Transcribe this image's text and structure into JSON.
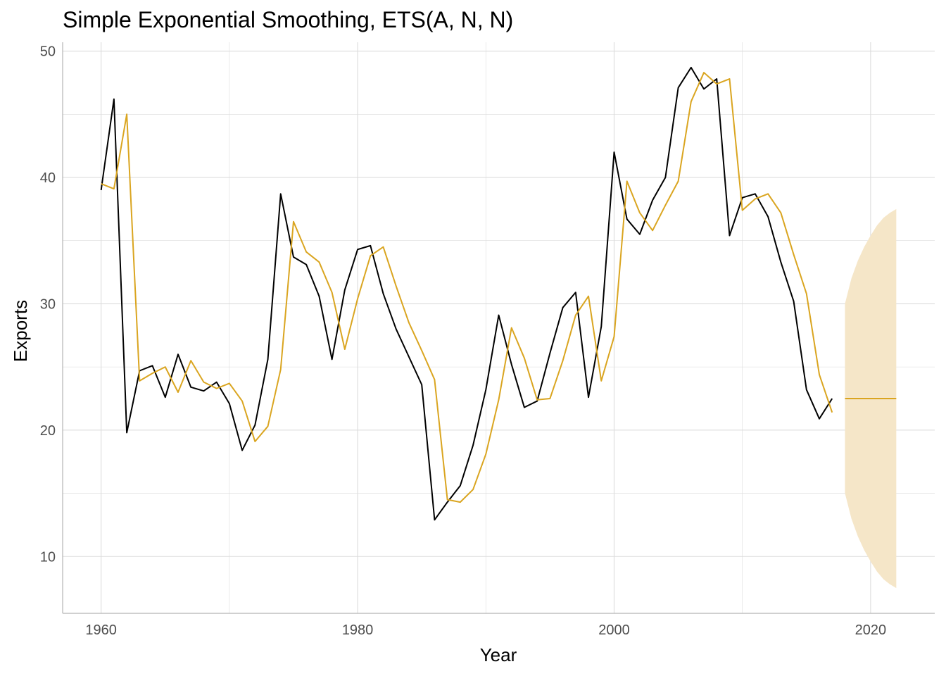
{
  "chart_data": {
    "type": "line",
    "title": "Simple Exponential Smoothing, ETS(A, N, N)",
    "xlabel": "Year",
    "ylabel": "Exports",
    "xlim": [
      1957,
      2025
    ],
    "ylim": [
      5.5,
      50.7
    ],
    "x_ticks": [
      1960,
      1980,
      2000,
      2020
    ],
    "y_ticks": [
      10,
      20,
      30,
      40,
      50
    ],
    "grid": true,
    "legend": "none",
    "colors": {
      "observed": "#000000",
      "fitted": "#DAA520",
      "forecast": "#DAA520",
      "interval": "#F5E6C8",
      "grid": "#dcdcdc",
      "axis": "#b3b3b3"
    },
    "series": [
      {
        "role": "observed",
        "x": [
          1960,
          1961,
          1962,
          1963,
          1964,
          1965,
          1966,
          1967,
          1968,
          1969,
          1970,
          1971,
          1972,
          1973,
          1974,
          1975,
          1976,
          1977,
          1978,
          1979,
          1980,
          1981,
          1982,
          1983,
          1984,
          1985,
          1986,
          1987,
          1988,
          1989,
          1990,
          1991,
          1992,
          1993,
          1994,
          1995,
          1996,
          1997,
          1998,
          1999,
          2000,
          2001,
          2002,
          2003,
          2004,
          2005,
          2006,
          2007,
          2008,
          2009,
          2010,
          2011,
          2012,
          2013,
          2014,
          2015,
          2016,
          2017
        ],
        "values": [
          39.0,
          46.2,
          19.8,
          24.7,
          25.1,
          22.6,
          26.0,
          23.4,
          23.1,
          23.8,
          22.1,
          18.4,
          20.4,
          25.6,
          38.7,
          33.7,
          33.1,
          30.6,
          25.6,
          31.1,
          34.3,
          34.6,
          30.8,
          28.0,
          25.8,
          23.6,
          12.9,
          14.3,
          15.6,
          18.8,
          23.2,
          29.1,
          25.2,
          21.8,
          22.3,
          26.1,
          29.7,
          30.9,
          22.6,
          28.2,
          42.0,
          36.7,
          35.5,
          38.2,
          40.0,
          47.1,
          48.7,
          47.0,
          47.8,
          35.4,
          38.4,
          38.7,
          36.9,
          33.3,
          30.2,
          23.2,
          20.9,
          22.5
        ]
      },
      {
        "role": "fitted",
        "x": [
          1960,
          1961,
          1962,
          1963,
          1964,
          1965,
          1966,
          1967,
          1968,
          1969,
          1970,
          1971,
          1972,
          1973,
          1974,
          1975,
          1976,
          1977,
          1978,
          1979,
          1980,
          1981,
          1982,
          1983,
          1984,
          1985,
          1986,
          1987,
          1988,
          1989,
          1990,
          1991,
          1992,
          1993,
          1994,
          1995,
          1996,
          1997,
          1998,
          1999,
          2000,
          2001,
          2002,
          2003,
          2004,
          2005,
          2006,
          2007,
          2008,
          2009,
          2010,
          2011,
          2012,
          2013,
          2014,
          2015,
          2016,
          2017
        ],
        "values": [
          39.5,
          39.1,
          45.0,
          23.9,
          24.5,
          25.0,
          23.0,
          25.5,
          23.8,
          23.3,
          23.7,
          22.3,
          19.1,
          20.3,
          24.8,
          36.5,
          34.1,
          33.3,
          30.9,
          26.4,
          30.4,
          33.8,
          34.5,
          31.4,
          28.5,
          26.3,
          24.0,
          14.5,
          14.3,
          15.3,
          18.1,
          22.4,
          28.1,
          25.7,
          22.4,
          22.5,
          25.5,
          29.1,
          30.6,
          23.9,
          27.4,
          39.7,
          37.2,
          35.8,
          37.8,
          39.7,
          46.0,
          48.3,
          47.4,
          47.8,
          37.4,
          38.3,
          38.7,
          37.2,
          33.9,
          30.8,
          24.4,
          21.4
        ]
      },
      {
        "role": "forecast",
        "x": [
          2018,
          2022
        ],
        "values": [
          22.5,
          22.5
        ]
      }
    ],
    "interval": {
      "x": [
        2018,
        2018.5,
        2019,
        2019.5,
        2020,
        2020.5,
        2021,
        2021.5,
        2022
      ],
      "lower": [
        15.0,
        13.0,
        11.6,
        10.5,
        9.6,
        8.8,
        8.2,
        7.8,
        7.5
      ],
      "upper": [
        30.0,
        32.0,
        33.4,
        34.5,
        35.4,
        36.2,
        36.8,
        37.2,
        37.5
      ]
    }
  }
}
